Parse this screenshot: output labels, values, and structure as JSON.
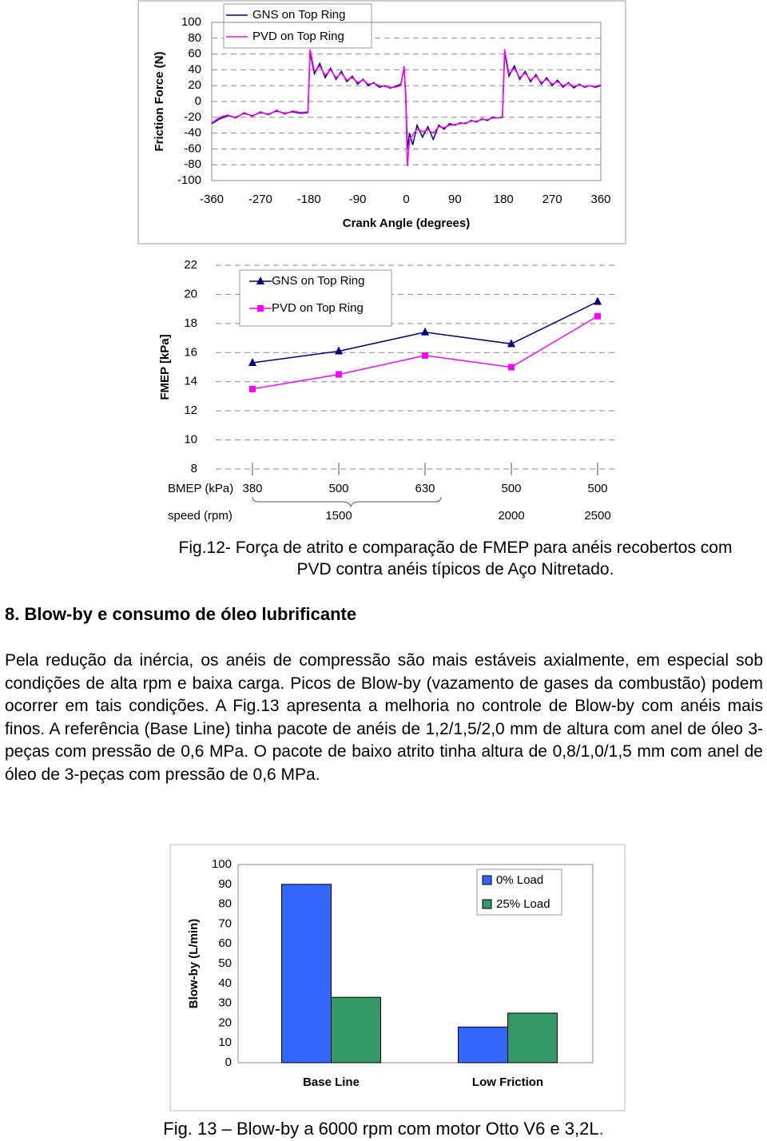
{
  "chart_data": [
    {
      "type": "line",
      "x_label": "Crank Angle (degrees)",
      "y_label": "Friction Force (N)",
      "x": [
        -360,
        -345,
        -330,
        -315,
        -300,
        -285,
        -270,
        -255,
        -240,
        -225,
        -210,
        -195,
        -182,
        -178,
        -170,
        -160,
        -150,
        -140,
        -130,
        -120,
        -110,
        -100,
        -90,
        -80,
        -70,
        -60,
        -50,
        -40,
        -30,
        -20,
        -10,
        -4,
        -1,
        2,
        6,
        12,
        20,
        30,
        40,
        50,
        60,
        70,
        80,
        90,
        100,
        110,
        120,
        130,
        140,
        150,
        160,
        170,
        178,
        182,
        190,
        200,
        210,
        220,
        230,
        240,
        250,
        260,
        270,
        280,
        290,
        300,
        310,
        320,
        330,
        340,
        350,
        360
      ],
      "series": [
        {
          "name": "GNS on Top Ring",
          "color": "#000080",
          "values": [
            -28,
            -22,
            -18,
            -20,
            -15,
            -18,
            -14,
            -16,
            -12,
            -15,
            -13,
            -15,
            -14,
            62,
            35,
            48,
            30,
            42,
            28,
            38,
            25,
            32,
            22,
            28,
            20,
            24,
            18,
            20,
            17,
            19,
            22,
            42,
            10,
            -60,
            -40,
            -55,
            -30,
            -45,
            -32,
            -48,
            -30,
            -35,
            -28,
            -30,
            -27,
            -28,
            -24,
            -26,
            -22,
            -24,
            -20,
            -21,
            -20,
            62,
            32,
            45,
            28,
            38,
            25,
            34,
            22,
            30,
            20,
            27,
            18,
            24,
            17,
            22,
            18,
            20,
            18,
            20
          ]
        },
        {
          "name": "PVD on Top Ring",
          "color": "#ff00ff",
          "values": [
            -27,
            -20,
            -17,
            -21,
            -14,
            -19,
            -13,
            -17,
            -11,
            -16,
            -12,
            -14,
            -13,
            66,
            38,
            45,
            33,
            40,
            30,
            36,
            27,
            30,
            24,
            27,
            22,
            23,
            20,
            19,
            18,
            18,
            20,
            45,
            5,
            -82,
            -50,
            -42,
            -35,
            -38,
            -36,
            -40,
            -32,
            -33,
            -30,
            -29,
            -28,
            -27,
            -25,
            -25,
            -23,
            -23,
            -21,
            -21,
            -19,
            66,
            35,
            42,
            30,
            36,
            27,
            32,
            24,
            28,
            22,
            25,
            20,
            23,
            19,
            21,
            19,
            20,
            19,
            21
          ]
        }
      ],
      "xlim": [
        -360,
        360
      ],
      "xticks": [
        -360,
        -270,
        -180,
        -90,
        0,
        90,
        180,
        270,
        360
      ],
      "ylim": [
        -100,
        100
      ],
      "yticks": [
        -100,
        -80,
        -60,
        -40,
        -20,
        0,
        20,
        40,
        60,
        80,
        100
      ],
      "grid": true,
      "legend": "top-left"
    },
    {
      "type": "line",
      "y_label": "FMEP [kPa]",
      "categories": [
        "380",
        "500",
        "630",
        "500",
        "500"
      ],
      "x_label_rows": [
        {
          "title": "BMEP (kPa)"
        },
        {
          "title": "speed (rpm)",
          "labels": [
            null,
            "1500",
            null,
            "2000",
            "2500"
          ]
        }
      ],
      "series": [
        {
          "name": "GNS on Top Ring",
          "color": "#000080",
          "marker": "triangle",
          "values": [
            15.3,
            16.1,
            17.4,
            16.6,
            19.5
          ]
        },
        {
          "name": "PVD on Top Ring",
          "color": "#ff00ff",
          "marker": "square",
          "values": [
            13.5,
            14.5,
            15.8,
            15.0,
            18.5
          ]
        }
      ],
      "ylim": [
        8,
        22
      ],
      "yticks": [
        8,
        10,
        12,
        14,
        16,
        18,
        20,
        22
      ],
      "grid": true,
      "legend": "top-left"
    },
    {
      "type": "bar",
      "y_label": "Blow-by (L/min)",
      "categories": [
        "Base Line",
        "Low Friction"
      ],
      "series": [
        {
          "name": "0% Load",
          "color": "#3366ff",
          "values": [
            90,
            18
          ]
        },
        {
          "name": "25% Load",
          "color": "#339966",
          "values": [
            33,
            25
          ]
        }
      ],
      "ylim": [
        0,
        100
      ],
      "yticks": [
        0,
        10,
        20,
        30,
        40,
        50,
        60,
        70,
        80,
        90,
        100
      ],
      "grid": false,
      "legend": "top-right"
    }
  ],
  "fig12_caption": "Fig.12- Força de atrito e comparação de FMEP para anéis recobertos com PVD contra anéis típicos de Aço Nitretado.",
  "section_heading": "8. Blow-by e consumo de óleo lubrificante",
  "paragraph": "Pela redução da inércia, os anéis de compressão são mais estáveis axialmente, em especial sob condições de alta rpm e baixa carga. Picos de Blow-by (vazamento de gases da combustão) podem ocorrer em tais condições. A Fig.13 apresenta a melhoria no controle de Blow-by com anéis mais finos. A referência (Base Line) tinha pacote de anéis de 1,2/1,5/2,0 mm de altura com anel de óleo 3-peças com pressão de 0,6 MPa. O pacote de baixo atrito tinha altura de 0,8/1,0/1,5 mm com anel de óleo de 3-peças com pressão de 0,6 MPa.",
  "fig13_caption": "Fig. 13 – Blow-by a 6000 rpm com motor Otto V6 e 3,2L",
  "fig13_caption_end": "."
}
